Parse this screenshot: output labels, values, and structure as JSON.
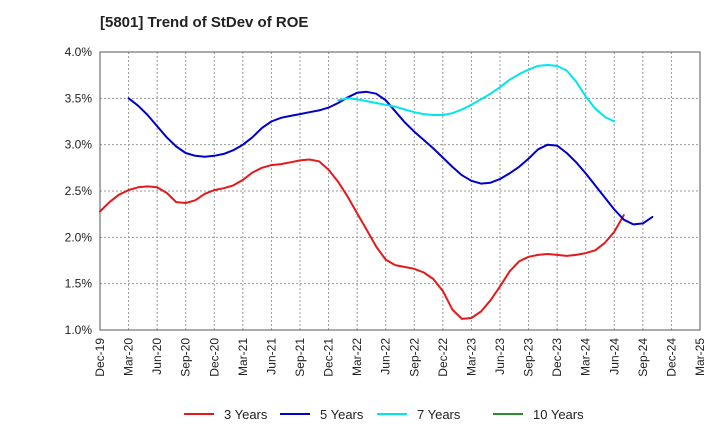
{
  "chart_data": {
    "type": "line",
    "title": "[5801]  Trend of StDev of ROE",
    "xlabel": "",
    "ylabel": "",
    "x_tick_labels": [
      "Dec-19",
      "Mar-20",
      "Jun-20",
      "Sep-20",
      "Dec-20",
      "Mar-21",
      "Jun-21",
      "Sep-21",
      "Dec-21",
      "Mar-22",
      "Jun-22",
      "Sep-22",
      "Dec-22",
      "Mar-23",
      "Jun-23",
      "Sep-23",
      "Dec-23",
      "Mar-24",
      "Jun-24",
      "Sep-24",
      "Dec-24",
      "Mar-25"
    ],
    "y_tick_labels": [
      "1.0%",
      "1.5%",
      "2.0%",
      "2.5%",
      "3.0%",
      "3.5%",
      "4.0%"
    ],
    "ylim": [
      1.0,
      4.0
    ],
    "y_unit": "%",
    "grid": "y-dashed",
    "legend_position": "bottom",
    "series": [
      {
        "name": "3 Years",
        "color": "#e31a1c",
        "values": [
          2.28,
          2.38,
          2.46,
          2.51,
          2.54,
          2.55,
          2.54,
          2.48,
          2.38,
          2.37,
          2.4,
          2.47,
          2.51,
          2.53,
          2.56,
          2.62,
          2.7,
          2.75,
          2.78,
          2.79,
          2.81,
          2.83,
          2.84,
          2.82,
          2.73,
          2.6,
          2.44,
          2.26,
          2.08,
          1.9,
          1.76,
          1.7,
          1.68,
          1.66,
          1.62,
          1.55,
          1.42,
          1.22,
          1.12,
          1.13,
          1.2,
          1.32,
          1.47,
          1.63,
          1.74,
          1.79,
          1.81,
          1.82,
          1.81,
          1.8,
          1.81,
          1.83,
          1.86,
          1.94,
          2.06,
          2.24
        ]
      },
      {
        "name": "5 Years",
        "color": "#0000cc",
        "values": [
          null,
          null,
          null,
          3.5,
          3.42,
          3.32,
          3.2,
          3.08,
          2.98,
          2.91,
          2.88,
          2.87,
          2.88,
          2.9,
          2.94,
          3.0,
          3.08,
          3.18,
          3.25,
          3.29,
          3.31,
          3.33,
          3.35,
          3.37,
          3.4,
          3.45,
          3.51,
          3.56,
          3.57,
          3.55,
          3.48,
          3.36,
          3.24,
          3.14,
          3.05,
          2.96,
          2.86,
          2.76,
          2.67,
          2.61,
          2.58,
          2.59,
          2.63,
          2.69,
          2.76,
          2.85,
          2.95,
          3.0,
          2.99,
          2.91,
          2.81,
          2.69,
          2.56,
          2.43,
          2.3,
          2.19,
          2.14,
          2.15,
          2.22
        ]
      },
      {
        "name": "7 Years",
        "color": "#00e5ee",
        "values": [
          null,
          null,
          null,
          null,
          null,
          null,
          null,
          null,
          null,
          null,
          null,
          null,
          null,
          null,
          null,
          null,
          null,
          null,
          null,
          null,
          null,
          null,
          null,
          null,
          null,
          3.48,
          3.5,
          3.49,
          3.47,
          3.45,
          3.43,
          3.41,
          3.38,
          3.35,
          3.33,
          3.32,
          3.32,
          3.34,
          3.38,
          3.43,
          3.49,
          3.55,
          3.62,
          3.7,
          3.76,
          3.81,
          3.85,
          3.86,
          3.85,
          3.8,
          3.68,
          3.52,
          3.39,
          3.3,
          3.25
        ]
      },
      {
        "name": "10 Years",
        "color": "#2e8b2e",
        "values": []
      }
    ]
  }
}
